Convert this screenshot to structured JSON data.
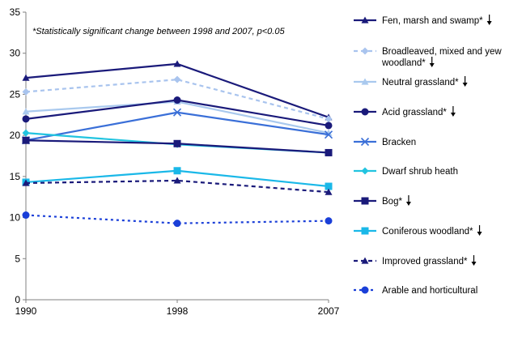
{
  "chart_data": {
    "type": "line",
    "title": "",
    "xlabel": "",
    "ylabel": "",
    "annotation": "*Statistically significant change between 1998 and 2007, p<0.05",
    "x": [
      "1990",
      "1998",
      "2007"
    ],
    "ylim": [
      0,
      35
    ],
    "yticks": [
      "0",
      "5",
      "10",
      "15",
      "20",
      "25",
      "30",
      "35"
    ],
    "grid": false,
    "legend_position": "right",
    "series": [
      {
        "name": "Fen, marsh and swamp*",
        "values": [
          27.0,
          28.7,
          22.2
        ],
        "color": "#1a1a7a",
        "style": "solid",
        "marker": "triangle",
        "decrease_arrow": true
      },
      {
        "name": "Broadleaved, mixed and yew woodland*",
        "values": [
          25.3,
          26.8,
          22.0
        ],
        "color": "#a9c4ee",
        "style": "dashed",
        "marker": "diamond",
        "decrease_arrow": true
      },
      {
        "name": "Neutral grassland*",
        "values": [
          22.9,
          24.1,
          20.3
        ],
        "color": "#a9c9ee",
        "style": "solid",
        "marker": "triangle",
        "decrease_arrow": true
      },
      {
        "name": "Acid grassland*",
        "values": [
          22.0,
          24.3,
          21.2
        ],
        "color": "#1a1a7a",
        "style": "solid",
        "marker": "circle",
        "decrease_arrow": true
      },
      {
        "name": "Bracken",
        "values": [
          19.4,
          22.8,
          20.1
        ],
        "color": "#3a6fd8",
        "style": "solid",
        "marker": "x",
        "decrease_arrow": false
      },
      {
        "name": "Dwarf shrub heath",
        "values": [
          20.3,
          18.9,
          17.9
        ],
        "color": "#22c4e0",
        "style": "solid",
        "marker": "diamond",
        "decrease_arrow": false
      },
      {
        "name": "Bog*",
        "values": [
          19.4,
          19.0,
          17.9
        ],
        "color": "#1a1a7a",
        "style": "solid",
        "marker": "square",
        "decrease_arrow": true
      },
      {
        "name": "Coniferous woodland*",
        "values": [
          14.3,
          15.7,
          13.8
        ],
        "color": "#1ab8e8",
        "style": "solid",
        "marker": "square",
        "decrease_arrow": true
      },
      {
        "name": "Improved grassland*",
        "values": [
          14.2,
          14.5,
          13.1
        ],
        "color": "#1a1a7a",
        "style": "dashed",
        "marker": "triangle",
        "decrease_arrow": true
      },
      {
        "name": "Arable and horticultural",
        "values": [
          10.3,
          9.3,
          9.6
        ],
        "color": "#1a3fd8",
        "style": "dotted",
        "marker": "circle",
        "decrease_arrow": false
      }
    ],
    "legend_lines": [
      [
        "Fen, marsh and swamp*"
      ],
      [
        "Broadleaved, mixed and yew",
        "woodland*"
      ],
      [
        "Neutral grassland*"
      ],
      [
        "Acid grassland*"
      ],
      [
        "Bracken"
      ],
      [
        "Dwarf shrub heath"
      ],
      [
        "Bog*"
      ],
      [
        "Coniferous woodland*"
      ],
      [
        "Improved grassland*"
      ],
      [
        "Arable and horticultural"
      ]
    ]
  }
}
